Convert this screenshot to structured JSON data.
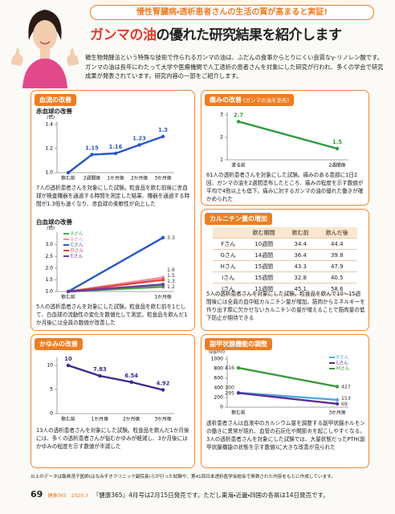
{
  "header": {
    "tagline": "慢性腎臓病・透析患者さんの生活の質が高まると実証!",
    "title_highlight": "ガンマの油",
    "title_rest": "の優れた研究結果を紹介します",
    "intro": "微生物発酵法という特殊な技術で作られるガンマの油は、ふだんの食事からとりにくい良質なγ-リノレン酸です。ガンマの油は長年にわたって大学や医療機関で人工透析の患者さんを対象にした研究が行われ、多くの学会で研究成果が発表されています。研究内容の一部をご紹介します。"
  },
  "sections": [
    {
      "heading": "血流の改善"
    },
    {
      "heading": "かゆみの改善"
    },
    {
      "heading": "痛みの改善",
      "subheading": "(ガンマの油を塗布)"
    },
    {
      "heading": "カルニチン量の増加"
    },
    {
      "heading": "副甲状腺機能の調整"
    }
  ],
  "chart_data": [
    {
      "type": "line",
      "title": "赤血球の改善",
      "y_label": "(倍)",
      "categories": [
        "飲む前",
        "2週間後",
        "1か月後",
        "2か月後",
        "3か月後"
      ],
      "series": [
        {
          "color": "#2a56c6",
          "values": [
            1,
            1.15,
            1.16,
            1.23,
            1.3
          ],
          "value_labels": [
            null,
            "1.15",
            "1.16",
            "1.23",
            "1.3"
          ]
        }
      ],
      "ylim": [
        1,
        1.4
      ],
      "yticks": [
        {
          "value": 1,
          "label": "1.0"
        },
        1.2,
        1.4
      ],
      "caption": "7人の透析患者さんを対象にした試験。粒食品を飲む前後に赤血球が検査機器を通過する時間を測定した結果、機器を通過する時間が1.3倍も速くなり、赤血球の柔軟性が向上した"
    },
    {
      "type": "line",
      "title": "白血球の改善",
      "y_label": "(倍)",
      "categories": [
        "飲む前",
        "1か月後"
      ],
      "series": [
        {
          "name": "Aさん",
          "color": "#3fae49",
          "values": [
            1,
            1.2
          ],
          "value_labels": [
            null,
            "1.2"
          ]
        },
        {
          "name": "Bさん",
          "color": "#f08aa8",
          "values": [
            1,
            1.6
          ],
          "value_labels": [
            null,
            "1.6"
          ]
        },
        {
          "name": "Cさん",
          "color": "#2a56c6",
          "values": [
            1,
            3.3
          ],
          "value_labels": [
            null,
            "3.3"
          ]
        },
        {
          "name": "Dさん",
          "color": "#e0463a",
          "values": [
            1,
            1.5
          ],
          "value_labels": [
            null,
            "1.5"
          ]
        },
        {
          "name": "Eさん",
          "color": "#6a3a9c",
          "values": [
            1,
            1.3
          ],
          "value_labels": [
            null,
            "1.3"
          ]
        }
      ],
      "ylim": [
        1,
        3.4
      ],
      "yticks": [
        {
          "value": 1,
          "label": "1.0"
        },
        1.5,
        {
          "value": 2,
          "label": "2.0"
        },
        2.5,
        {
          "value": 3,
          "label": "3.0"
        }
      ],
      "legend": "upper left",
      "caption": "5人の透析患者さんを対象にした試験。粒食品を飲む前を1として、白血球の流動性の変化を数値化して測定。粒食品を飲んだ1か月後には全員の数値が改善した"
    },
    {
      "type": "line",
      "categories": [
        "飲む前",
        "1か月後",
        "2か月後",
        "3か月後"
      ],
      "series": [
        {
          "color": "#3a2a8c",
          "values": [
            10,
            7.83,
            6.54,
            4.92
          ]
        }
      ],
      "ylim": [
        0,
        11
      ],
      "yticks": [
        0,
        5,
        10
      ],
      "caption": "13人の透析患者さんを対象にした試験。粒食品を飲んだ1か月後には、多くの透析患者さんが悩むかゆみが軽減し、3か月後にはかゆみの程度を示す数値が半減した"
    },
    {
      "type": "line",
      "categories": [
        "塗る前",
        "2週間後"
      ],
      "series": [
        {
          "color": "#2e9b3e",
          "values": [
            2.7,
            1.5
          ]
        }
      ],
      "ylim": [
        1,
        3
      ],
      "yticks": [
        1,
        2,
        3
      ],
      "caption": "61人の透析患者さんを対象にした試験。痛みのある患部に1日2回、ガンマの油を2週間塗布したところ、痛みの程度を示す数値が平均で4割以上も低下。痛みに対するガンマの油の優れた働きが確かめられた"
    },
    {
      "type": "line",
      "y_label": "(pg/ml)",
      "categories": [
        "飲む前",
        "3か月後"
      ],
      "series": [
        {
          "name": "Kさん",
          "color": "#4fa9e0",
          "values": [
            300,
            153
          ]
        },
        {
          "name": "Lさん",
          "color": "#5a2f92",
          "values": [
            295,
            69
          ]
        },
        {
          "name": "Mさん",
          "color": "#3a9a3a",
          "values": [
            816,
            427
          ]
        }
      ],
      "ylim": [
        0,
        1000
      ],
      "yticks": [
        0,
        200,
        400,
        600,
        800,
        1000
      ],
      "legend": "upper right",
      "caption": "透析患者さんは血液中のカルシウム量を調整する副甲状腺ホルモンの働きに異常が現れ、血管の石灰化や関節炎を起こしやすくなる。3人の透析患者さんを対象にした試験では、大量状態だったPTH(副甲状腺機能の状態を示す数値)に大きな改善が見られた"
    }
  ],
  "table": {
    "columns": [
      "飲む期間",
      "飲む前",
      "飲んだ後"
    ],
    "rows": [
      [
        "Fさん",
        "10週間",
        34.4,
        44.4
      ],
      [
        "Gさん",
        "14週間",
        36.4,
        39.8
      ],
      [
        "Hさん",
        "15週間",
        43.3,
        47.9
      ],
      [
        "Iさん",
        "15週間",
        32.8,
        40.5
      ],
      [
        "Jさん",
        "11週間",
        45.1,
        58.6
      ]
    ],
    "caption": "5人の透析患者さんを対象にした試験。粒食品を飲んで10〜15週間後には全員の血中総カルニチン量が増加。筋肉からエネルギーを作り出す際に欠かせないカルニチンの量が増えることで筋肉量の低下防止が期待できる"
  },
  "footer": {
    "note": "以上のデータは飯島茂子医師(はなみずきクリニック副院長)らが行った試験や、第41回日本透析医学会総会で発表された内容をもとに作成しています。",
    "page": "69",
    "magazine": "健康365",
    "issue": "2020.3",
    "notice": "『健康365』4月号は2月15日発売です。ただし東海・近畿・四国の各県は14日発売です。"
  }
}
